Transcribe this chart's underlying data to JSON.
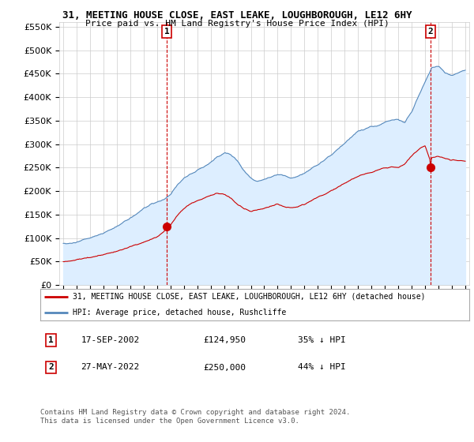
{
  "title1": "31, MEETING HOUSE CLOSE, EAST LEAKE, LOUGHBOROUGH, LE12 6HY",
  "title2": "Price paid vs. HM Land Registry's House Price Index (HPI)",
  "legend_red": "31, MEETING HOUSE CLOSE, EAST LEAKE, LOUGHBOROUGH, LE12 6HY (detached house)",
  "legend_blue": "HPI: Average price, detached house, Rushcliffe",
  "annotation1_label": "1",
  "annotation1_date": "17-SEP-2002",
  "annotation1_price": "£124,950",
  "annotation1_hpi": "35% ↓ HPI",
  "annotation2_label": "2",
  "annotation2_date": "27-MAY-2022",
  "annotation2_price": "£250,000",
  "annotation2_hpi": "44% ↓ HPI",
  "footer1": "Contains HM Land Registry data © Crown copyright and database right 2024.",
  "footer2": "This data is licensed under the Open Government Licence v3.0.",
  "point1_year": 2002.72,
  "point1_value": 124950,
  "point2_year": 2022.41,
  "point2_value": 250000,
  "red_color": "#cc0000",
  "blue_color": "#5588bb",
  "blue_fill": "#ddeeff",
  "bg_color": "#ffffff",
  "grid_color": "#cccccc",
  "annotation_box_color": "#cc0000",
  "ylim_max": 560000,
  "ylim_min": 0,
  "hpi_anchors_x": [
    1995.0,
    1995.5,
    1996.0,
    1996.5,
    1997.0,
    1997.5,
    1998.0,
    1998.5,
    1999.0,
    1999.5,
    2000.0,
    2000.5,
    2001.0,
    2001.5,
    2002.0,
    2002.5,
    2003.0,
    2003.5,
    2004.0,
    2004.5,
    2005.0,
    2005.5,
    2006.0,
    2006.5,
    2007.0,
    2007.5,
    2008.0,
    2008.5,
    2009.0,
    2009.5,
    2010.0,
    2010.5,
    2011.0,
    2011.5,
    2012.0,
    2012.5,
    2013.0,
    2013.5,
    2014.0,
    2014.5,
    2015.0,
    2015.5,
    2016.0,
    2016.5,
    2017.0,
    2017.5,
    2018.0,
    2018.5,
    2019.0,
    2019.5,
    2020.0,
    2020.5,
    2021.0,
    2021.5,
    2022.0,
    2022.5,
    2023.0,
    2023.5,
    2024.0,
    2024.5,
    2025.0
  ],
  "hpi_anchors_y": [
    88000,
    90000,
    93000,
    97000,
    101000,
    106000,
    112000,
    118000,
    125000,
    133000,
    142000,
    152000,
    163000,
    170000,
    175000,
    180000,
    190000,
    210000,
    225000,
    235000,
    242000,
    248000,
    258000,
    272000,
    280000,
    278000,
    265000,
    245000,
    230000,
    222000,
    228000,
    232000,
    235000,
    232000,
    228000,
    230000,
    238000,
    248000,
    258000,
    268000,
    280000,
    292000,
    305000,
    318000,
    330000,
    335000,
    340000,
    342000,
    348000,
    352000,
    355000,
    350000,
    375000,
    410000,
    440000,
    470000,
    475000,
    460000,
    455000,
    460000,
    465000
  ],
  "red_anchors_x": [
    1995.0,
    1995.5,
    1996.0,
    1996.5,
    1997.0,
    1997.5,
    1998.0,
    1998.5,
    1999.0,
    1999.5,
    2000.0,
    2000.5,
    2001.0,
    2001.5,
    2002.0,
    2002.5,
    2002.72,
    2003.0,
    2003.5,
    2004.0,
    2004.5,
    2005.0,
    2005.5,
    2006.0,
    2006.5,
    2007.0,
    2007.5,
    2008.0,
    2008.5,
    2009.0,
    2009.5,
    2010.0,
    2010.5,
    2011.0,
    2011.5,
    2012.0,
    2012.5,
    2013.0,
    2013.5,
    2014.0,
    2014.5,
    2015.0,
    2015.5,
    2016.0,
    2016.5,
    2017.0,
    2017.5,
    2018.0,
    2018.5,
    2019.0,
    2019.5,
    2020.0,
    2020.5,
    2021.0,
    2021.5,
    2022.0,
    2022.41,
    2022.5,
    2023.0,
    2023.5,
    2024.0,
    2024.5,
    2025.0
  ],
  "red_anchors_y": [
    50000,
    52000,
    54000,
    56000,
    58000,
    62000,
    66000,
    70000,
    74000,
    78000,
    83000,
    88000,
    93000,
    98000,
    103000,
    113000,
    124950,
    128000,
    148000,
    162000,
    170000,
    175000,
    180000,
    185000,
    188000,
    185000,
    178000,
    165000,
    155000,
    148000,
    150000,
    155000,
    158000,
    160000,
    157000,
    155000,
    158000,
    163000,
    170000,
    178000,
    185000,
    192000,
    200000,
    208000,
    215000,
    222000,
    226000,
    228000,
    232000,
    235000,
    237000,
    235000,
    245000,
    260000,
    272000,
    282000,
    250000,
    258000,
    260000,
    255000,
    252000,
    250000,
    248000
  ]
}
